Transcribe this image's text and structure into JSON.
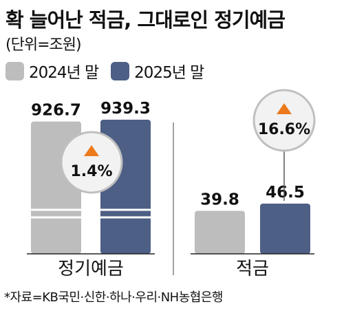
{
  "title": "확 늘어난 적금, 그대로인 정기예금",
  "unit_note": "(단위=조원)",
  "legend": [
    {
      "label": "2024년 말",
      "color": "#bdbdbd"
    },
    {
      "label": "2025년 말",
      "color": "#4e5f85"
    }
  ],
  "source": "*자료=KB국민·신한·하나·우리·NH농협은행",
  "colors": {
    "bar_2024": "#bdbdbd",
    "bar_2025": "#4e5f85",
    "accent": "#ec7a1c",
    "badge_fill": "#f2f2f2",
    "badge_stroke": "#bfbfbf",
    "break_line": "#ffffff"
  },
  "chart_data": {
    "type": "bar",
    "categories": [
      "정기예금",
      "적금"
    ],
    "series": [
      {
        "name": "2024년 말",
        "values": [
          926.7,
          39.8
        ],
        "labels": [
          "926.7",
          "39.8"
        ]
      },
      {
        "name": "2025년 말",
        "values": [
          939.3,
          46.5
        ],
        "labels": [
          "939.3",
          "46.5"
        ]
      }
    ],
    "axis_break": true,
    "changes": [
      {
        "category": "정기예금",
        "label": "1.4%",
        "direction": "up"
      },
      {
        "category": "적금",
        "label": "16.6%",
        "direction": "up"
      }
    ]
  }
}
